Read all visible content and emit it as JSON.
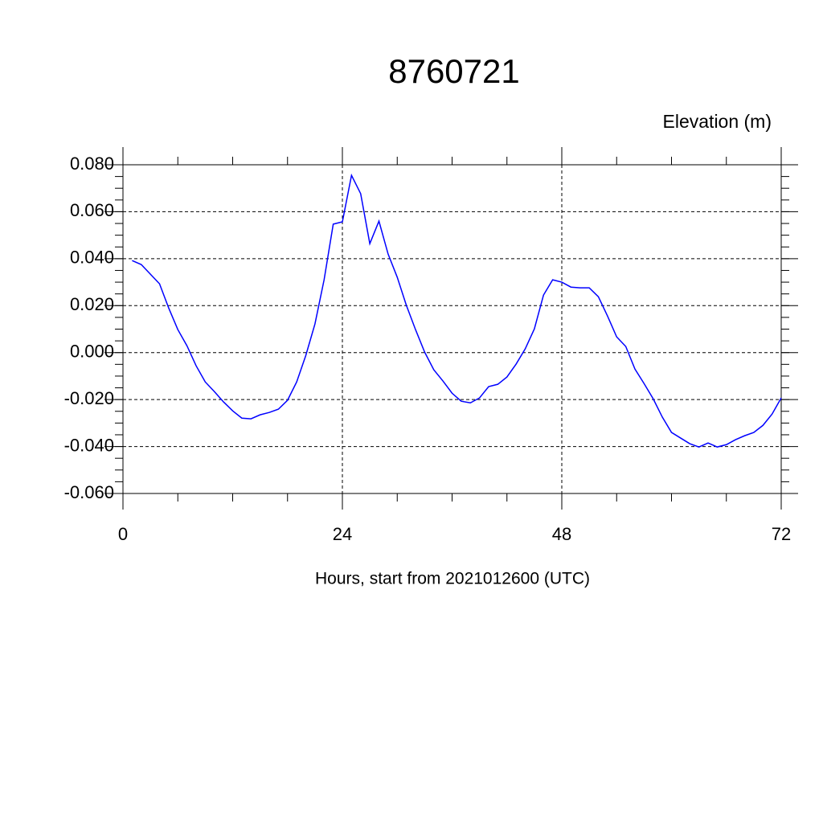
{
  "chart_data": {
    "type": "line",
    "title": "8760721",
    "subtitle": "Elevation (m)",
    "x_label": "Hours, start from 2021012600 (UTC)",
    "x": [
      1,
      2,
      3,
      4,
      5,
      6,
      7,
      8,
      9,
      10,
      11,
      12,
      13,
      14,
      15,
      16,
      17,
      18,
      19,
      20,
      21,
      22,
      23,
      24,
      25,
      26,
      27,
      28,
      29,
      30,
      31,
      32,
      33,
      34,
      35,
      36,
      37,
      38,
      39,
      40,
      41,
      42,
      43,
      44,
      45,
      46,
      47,
      48,
      49,
      50,
      51,
      52,
      53,
      54,
      55,
      56,
      57,
      58,
      59,
      60,
      61,
      62,
      63,
      64,
      65,
      66,
      67,
      68,
      69,
      70,
      71,
      72
    ],
    "series": [
      {
        "color": "#0000ff",
        "values": [
          0.0392,
          0.0375,
          0.0334,
          0.0293,
          0.019,
          0.0098,
          0.0029,
          -0.0056,
          -0.0125,
          -0.0166,
          -0.021,
          -0.0248,
          -0.0279,
          -0.0282,
          -0.0265,
          -0.0255,
          -0.0241,
          -0.0203,
          -0.0125,
          -0.0012,
          0.0122,
          0.031,
          0.0547,
          0.0557,
          0.0755,
          0.0677,
          0.0464,
          0.056,
          0.042,
          0.0321,
          0.0201,
          0.0098,
          0.0002,
          -0.0073,
          -0.0121,
          -0.0173,
          -0.0207,
          -0.0214,
          -0.0193,
          -0.0145,
          -0.0135,
          -0.0104,
          -0.0049,
          0.0016,
          0.0101,
          0.0245,
          0.031,
          0.03,
          0.0279,
          0.0276,
          0.0276,
          0.0238,
          0.0156,
          0.0067,
          0.0026,
          -0.007,
          -0.0132,
          -0.0197,
          -0.0275,
          -0.034,
          -0.0364,
          -0.0388,
          -0.0402,
          -0.0385,
          -0.0402,
          -0.0392,
          -0.0371,
          -0.0354,
          -0.034,
          -0.031,
          -0.0262,
          -0.0193
        ]
      }
    ],
    "xlim": [
      0,
      72
    ],
    "xticks": [
      0,
      24,
      48,
      72
    ],
    "ylim": [
      -0.06,
      0.08
    ],
    "yticks": [
      {
        "value": -0.06,
        "label": "-0.060"
      },
      {
        "value": -0.04,
        "label": "-0.040"
      },
      {
        "value": -0.02,
        "label": "-0.020"
      },
      {
        "value": 0,
        "label": "0.000"
      },
      {
        "value": 0.02,
        "label": "0.020"
      },
      {
        "value": 0.04,
        "label": "0.040"
      },
      {
        "value": 0.06,
        "label": "0.060"
      },
      {
        "value": 0.08,
        "label": "0.080"
      }
    ],
    "grid": true
  }
}
